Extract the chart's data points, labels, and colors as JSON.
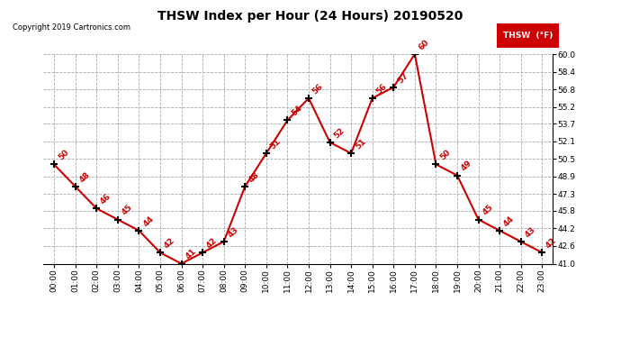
{
  "title": "THSW Index per Hour (24 Hours) 20190520",
  "copyright": "Copyright 2019 Cartronics.com",
  "legend_label": "THSW  (°F)",
  "hours": [
    0,
    1,
    2,
    3,
    4,
    5,
    6,
    7,
    8,
    9,
    10,
    11,
    12,
    13,
    14,
    15,
    16,
    17,
    18,
    19,
    20,
    21,
    22,
    23
  ],
  "values": [
    50,
    48,
    46,
    45,
    44,
    42,
    41,
    42,
    43,
    48,
    51,
    54,
    56,
    52,
    51,
    56,
    57,
    60,
    50,
    49,
    45,
    44,
    43,
    42
  ],
  "ylim": [
    41.0,
    60.0
  ],
  "yticks": [
    41.0,
    42.6,
    44.2,
    45.8,
    47.3,
    48.9,
    50.5,
    52.1,
    53.7,
    55.2,
    56.8,
    58.4,
    60.0
  ],
  "line_color": "#cc0000",
  "marker_color": "#000000",
  "bg_color": "#ffffff",
  "grid_color": "#aaaaaa",
  "title_color": "#000000",
  "copyright_color": "#000000",
  "label_color": "#cc0000",
  "legend_bg": "#cc0000",
  "legend_text_color": "#ffffff"
}
